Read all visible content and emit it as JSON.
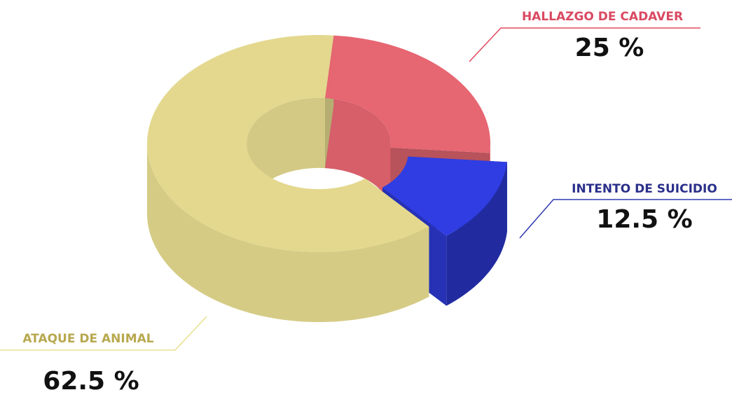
{
  "chart_data": {
    "type": "pie",
    "donut": true,
    "categories": [
      "HALLAZGO DE CADAVER",
      "INTENTO DE SUICIDIO",
      "ATAQUE DE ANIMAL"
    ],
    "values": [
      25,
      12.5,
      62.5
    ],
    "value_labels": [
      "25 %",
      "12.5 %",
      "62.5 %"
    ],
    "colors": [
      "#e66672",
      "#2f3de3",
      "#e3d88e"
    ]
  }
}
